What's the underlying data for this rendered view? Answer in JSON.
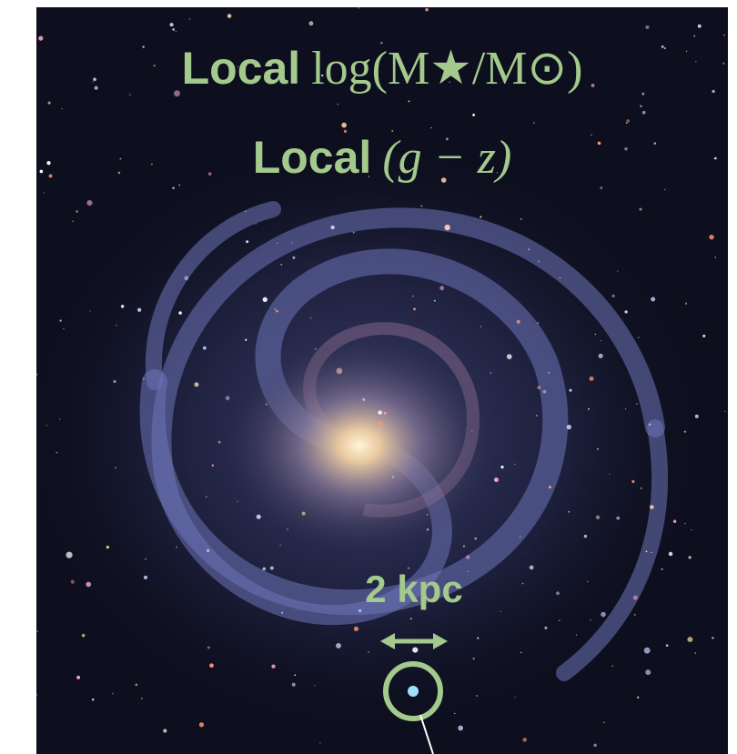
{
  "overlay": {
    "line1": {
      "prefix": "Local",
      "math": "log(M★/M⊙)"
    },
    "line2": {
      "prefix": "Local",
      "math": "(g − z)"
    },
    "scale_label": "2 kpc"
  }
}
